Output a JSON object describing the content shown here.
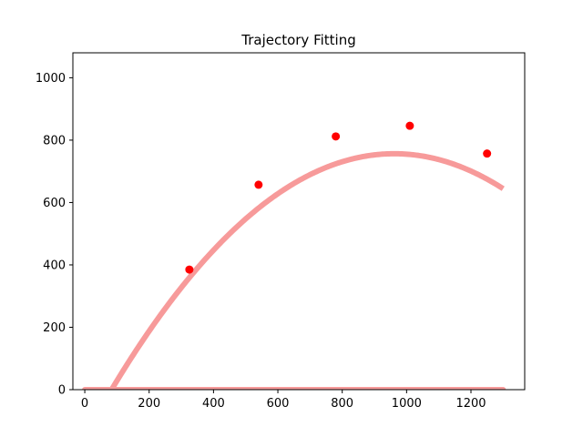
{
  "chart_data": {
    "type": "scatter",
    "title": "Trajectory Fitting",
    "xlabel": "",
    "ylabel": "",
    "xlim": [
      -37,
      1367
    ],
    "ylim": [
      0,
      1080
    ],
    "xticks": [
      0,
      200,
      400,
      600,
      800,
      1000,
      1200
    ],
    "yticks": [
      0,
      200,
      400,
      600,
      800,
      1000
    ],
    "grid": false,
    "points": {
      "color": "#ff0000",
      "x": [
        325,
        540,
        780,
        1010,
        1250
      ],
      "y": [
        385,
        657,
        812,
        846,
        757
      ]
    },
    "fitted_curve": {
      "color": "#f79a9a",
      "x_range": [
        0,
        1300
      ],
      "coefficients": [
        -0.00098,
        1.885,
        -150
      ]
    },
    "ground_line": {
      "color": "#f79a9a",
      "x_range": [
        0,
        1300
      ],
      "y": 0
    }
  }
}
